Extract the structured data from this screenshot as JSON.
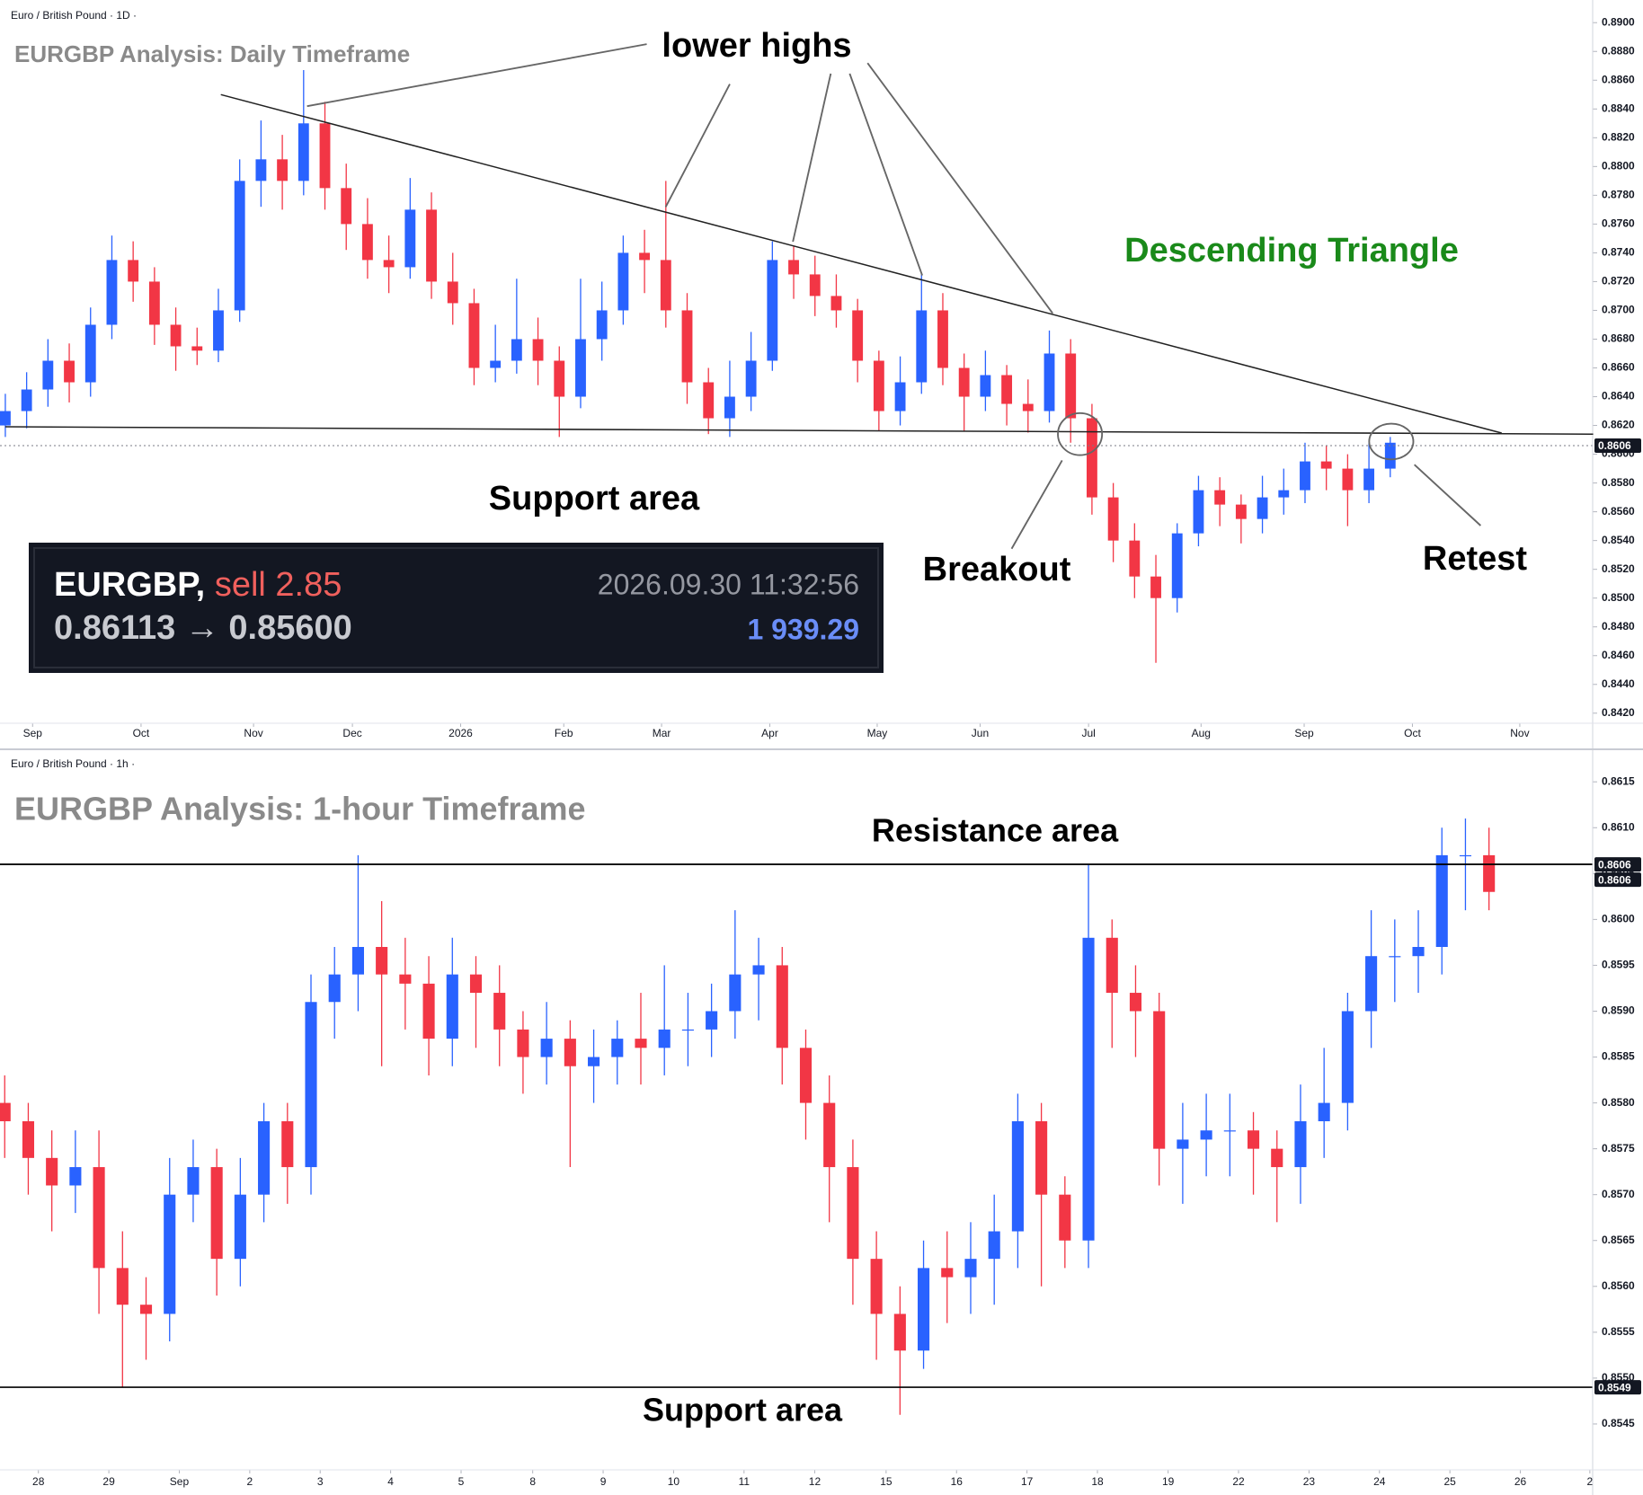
{
  "chart_data": [
    {
      "type": "candlestick",
      "header": "Euro / British Pound · 1D ·",
      "title": "EURGBP Analysis: Daily Timeframe",
      "annotations": [
        "lower highs",
        "Descending Triangle",
        "Support area",
        "Breakout",
        "Retest"
      ],
      "up_color": "#2962ff",
      "down_color": "#f23645",
      "line_style": "dotted",
      "xlim": [
        -0.25,
        74.5
      ],
      "xticks": [
        {
          "value": 1.28,
          "label": "Sep"
        },
        {
          "value": 6.37,
          "label": "Oct"
        },
        {
          "value": 11.65,
          "label": "Nov"
        },
        {
          "value": 16.29,
          "label": "Dec"
        },
        {
          "value": 21.37,
          "label": "2026"
        },
        {
          "value": 26.21,
          "label": "Feb"
        },
        {
          "value": 30.8,
          "label": "Mar"
        },
        {
          "value": 35.88,
          "label": "Apr"
        },
        {
          "value": 40.92,
          "label": "May"
        },
        {
          "value": 45.75,
          "label": "Jun"
        },
        {
          "value": 50.84,
          "label": "Jul"
        },
        {
          "value": 56.12,
          "label": "Aug"
        },
        {
          "value": 60.96,
          "label": "Sep"
        },
        {
          "value": 66.04,
          "label": "Oct"
        },
        {
          "value": 71.08,
          "label": "Nov"
        }
      ],
      "ylim": [
        0.8413,
        0.8912
      ],
      "yticks": [
        {
          "value": 0.842,
          "label": "0.8420"
        },
        {
          "value": 0.844,
          "label": "0.8440"
        },
        {
          "value": 0.846,
          "label": "0.8460"
        },
        {
          "value": 0.848,
          "label": "0.8480"
        },
        {
          "value": 0.85,
          "label": "0.8500"
        },
        {
          "value": 0.852,
          "label": "0.8520"
        },
        {
          "value": 0.854,
          "label": "0.8540"
        },
        {
          "value": 0.856,
          "label": "0.8560"
        },
        {
          "value": 0.858,
          "label": "0.8580"
        },
        {
          "value": 0.86,
          "label": "0.8600"
        },
        {
          "value": 0.862,
          "label": "0.8620"
        },
        {
          "value": 0.864,
          "label": "0.8640"
        },
        {
          "value": 0.866,
          "label": "0.8660"
        },
        {
          "value": 0.868,
          "label": "0.8680"
        },
        {
          "value": 0.87,
          "label": "0.8700"
        },
        {
          "value": 0.872,
          "label": "0.8720"
        },
        {
          "value": 0.874,
          "label": "0.8740"
        },
        {
          "value": 0.876,
          "label": "0.8760"
        },
        {
          "value": 0.878,
          "label": "0.8780"
        },
        {
          "value": 0.88,
          "label": "0.8800"
        },
        {
          "value": 0.882,
          "label": "0.8820"
        },
        {
          "value": 0.884,
          "label": "0.8840"
        },
        {
          "value": 0.886,
          "label": "0.8860"
        },
        {
          "value": 0.888,
          "label": "0.8880"
        },
        {
          "value": 0.89,
          "label": "0.8900"
        }
      ],
      "price_labels": [
        {
          "value": 0.8606,
          "label": "0.8606"
        }
      ],
      "open": [
        0.862,
        0.863,
        0.8645,
        0.8665,
        0.865,
        0.869,
        0.8735,
        0.872,
        0.869,
        0.8675,
        0.8672,
        0.87,
        0.879,
        0.8805,
        0.879,
        0.883,
        0.8785,
        0.876,
        0.8735,
        0.873,
        0.877,
        0.872,
        0.8705,
        0.866,
        0.8665,
        0.868,
        0.8665,
        0.864,
        0.868,
        0.87,
        0.874,
        0.8735,
        0.87,
        0.865,
        0.8625,
        0.864,
        0.8665,
        0.8735,
        0.8725,
        0.871,
        0.87,
        0.8665,
        0.863,
        0.865,
        0.87,
        0.866,
        0.864,
        0.8655,
        0.8635,
        0.863,
        0.867,
        0.8625,
        0.857,
        0.854,
        0.8515,
        0.85,
        0.8545,
        0.8575,
        0.8565,
        0.8555,
        0.857,
        0.8575,
        0.8595,
        0.859,
        0.8575,
        0.859
      ],
      "high": [
        0.8642,
        0.8657,
        0.868,
        0.8677,
        0.8702,
        0.8752,
        0.8748,
        0.873,
        0.8702,
        0.8688,
        0.8715,
        0.8805,
        0.8832,
        0.8822,
        0.8867,
        0.8845,
        0.8802,
        0.8778,
        0.8752,
        0.8792,
        0.8782,
        0.874,
        0.8715,
        0.869,
        0.8722,
        0.8695,
        0.8675,
        0.8722,
        0.872,
        0.8752,
        0.8756,
        0.879,
        0.8712,
        0.866,
        0.8665,
        0.8685,
        0.8748,
        0.8745,
        0.8738,
        0.8725,
        0.8708,
        0.8672,
        0.8668,
        0.8725,
        0.8712,
        0.867,
        0.8672,
        0.8662,
        0.8652,
        0.8686,
        0.868,
        0.8635,
        0.858,
        0.8552,
        0.853,
        0.8552,
        0.8585,
        0.8584,
        0.8572,
        0.8585,
        0.859,
        0.8608,
        0.8606,
        0.86,
        0.8608,
        0.8612
      ],
      "low": [
        0.8612,
        0.8618,
        0.8633,
        0.8636,
        0.864,
        0.868,
        0.8706,
        0.8676,
        0.8658,
        0.8662,
        0.8664,
        0.8692,
        0.8772,
        0.877,
        0.878,
        0.877,
        0.8742,
        0.8722,
        0.8712,
        0.8722,
        0.8708,
        0.869,
        0.8648,
        0.865,
        0.8656,
        0.8648,
        0.8612,
        0.8632,
        0.8665,
        0.869,
        0.8712,
        0.8688,
        0.8635,
        0.8614,
        0.8612,
        0.863,
        0.8658,
        0.8708,
        0.8696,
        0.8688,
        0.865,
        0.8616,
        0.862,
        0.8642,
        0.8648,
        0.8616,
        0.863,
        0.862,
        0.8615,
        0.8622,
        0.8608,
        0.8558,
        0.8525,
        0.85,
        0.8455,
        0.849,
        0.8536,
        0.855,
        0.8538,
        0.8545,
        0.8558,
        0.8566,
        0.8575,
        0.855,
        0.8566,
        0.8584
      ],
      "close": [
        0.863,
        0.8645,
        0.8665,
        0.865,
        0.869,
        0.8735,
        0.872,
        0.869,
        0.8675,
        0.8672,
        0.87,
        0.879,
        0.8805,
        0.879,
        0.883,
        0.8785,
        0.876,
        0.8735,
        0.873,
        0.877,
        0.872,
        0.8705,
        0.866,
        0.8665,
        0.868,
        0.8665,
        0.864,
        0.868,
        0.87,
        0.874,
        0.8735,
        0.87,
        0.865,
        0.8625,
        0.864,
        0.8665,
        0.8735,
        0.8725,
        0.871,
        0.87,
        0.8665,
        0.863,
        0.865,
        0.87,
        0.866,
        0.864,
        0.8655,
        0.8635,
        0.863,
        0.867,
        0.8625,
        0.857,
        0.854,
        0.8515,
        0.85,
        0.8545,
        0.8575,
        0.8565,
        0.8555,
        0.857,
        0.8575,
        0.8595,
        0.859,
        0.8575,
        0.859,
        0.8608
      ]
    },
    {
      "type": "candlestick",
      "header": "Euro / British Pound · 1h ·",
      "title": "EURGBP Analysis: 1-hour Timeframe",
      "annotations": [
        "Resistance area",
        "Support area"
      ],
      "up_color": "#2962ff",
      "down_color": "#f23645",
      "line_style": "solid",
      "xlim": [
        -0.2,
        67.4
      ],
      "xticks": [
        {
          "value": 1.43,
          "label": "28"
        },
        {
          "value": 4.42,
          "label": "29"
        },
        {
          "value": 7.41,
          "label": "Sep"
        },
        {
          "value": 10.4,
          "label": "2"
        },
        {
          "value": 13.39,
          "label": "3"
        },
        {
          "value": 16.38,
          "label": "4"
        },
        {
          "value": 19.37,
          "label": "5"
        },
        {
          "value": 22.41,
          "label": "8"
        },
        {
          "value": 25.4,
          "label": "9"
        },
        {
          "value": 28.39,
          "label": "10"
        },
        {
          "value": 31.38,
          "label": "11"
        },
        {
          "value": 34.38,
          "label": "12"
        },
        {
          "value": 37.41,
          "label": "15"
        },
        {
          "value": 40.4,
          "label": "16"
        },
        {
          "value": 43.39,
          "label": "17"
        },
        {
          "value": 46.38,
          "label": "18"
        },
        {
          "value": 49.38,
          "label": "19"
        },
        {
          "value": 52.37,
          "label": "22"
        },
        {
          "value": 55.36,
          "label": "23"
        },
        {
          "value": 58.35,
          "label": "24"
        },
        {
          "value": 61.34,
          "label": "25"
        },
        {
          "value": 64.33,
          "label": "26"
        },
        {
          "value": 67.28,
          "label": "2"
        }
      ],
      "ylim": [
        0.854,
        0.8616
      ],
      "yticks": [
        0.8545,
        {
          "value": 0.855,
          "label": "0.8550"
        },
        0.8555,
        {
          "value": 0.856,
          "label": "0.8560"
        },
        0.8565,
        {
          "value": 0.857,
          "label": "0.8570"
        },
        0.8575,
        {
          "value": 0.858,
          "label": "0.8580"
        },
        0.8585,
        {
          "value": 0.859,
          "label": "0.8590"
        },
        0.8595,
        {
          "value": 0.86,
          "label": "0.8600"
        },
        0.8605,
        {
          "value": 0.861,
          "label": "0.8610"
        },
        0.8615
      ],
      "price_labels": [
        {
          "value": 0.8606,
          "label": "0.8606"
        },
        {
          "value": 0.8606,
          "label": "0.8606"
        },
        0.8549
      ],
      "open": [
        0.858,
        0.8578,
        0.8574,
        0.8571,
        0.8573,
        0.8562,
        0.8558,
        0.8557,
        0.857,
        0.8573,
        0.8563,
        0.857,
        0.8578,
        0.8573,
        0.8591,
        0.8594,
        0.8597,
        0.8594,
        0.8593,
        0.8587,
        0.8594,
        0.8592,
        0.8588,
        0.8585,
        0.8587,
        0.8584,
        0.8585,
        0.8587,
        0.8586,
        0.8588,
        0.8588,
        0.859,
        0.8594,
        0.8595,
        0.8586,
        0.858,
        0.8573,
        0.8563,
        0.8557,
        0.8553,
        0.8562,
        0.8561,
        0.8563,
        0.8566,
        0.8578,
        0.857,
        0.8565,
        0.8598,
        0.8592,
        0.859,
        0.8575,
        0.8576,
        0.8577,
        0.8577,
        0.8575,
        0.8573,
        0.8578,
        0.858,
        0.859,
        0.8596,
        0.8596,
        0.8597,
        0.8607,
        0.8607
      ],
      "high": [
        0.8583,
        0.858,
        0.8577,
        0.8577,
        0.8577,
        0.8566,
        0.8561,
        0.8574,
        0.8576,
        0.8575,
        0.8574,
        0.858,
        0.858,
        0.8594,
        0.8597,
        0.8607,
        0.8602,
        0.8598,
        0.8596,
        0.8598,
        0.8596,
        0.8595,
        0.859,
        0.8591,
        0.8589,
        0.8588,
        0.8589,
        0.8592,
        0.8595,
        0.8592,
        0.8593,
        0.8601,
        0.8598,
        0.8597,
        0.8588,
        0.8583,
        0.8576,
        0.8566,
        0.856,
        0.8565,
        0.8566,
        0.8567,
        0.857,
        0.8581,
        0.858,
        0.8572,
        0.8606,
        0.86,
        0.8595,
        0.8592,
        0.858,
        0.8581,
        0.8581,
        0.8579,
        0.8577,
        0.8582,
        0.8586,
        0.8592,
        0.8601,
        0.86,
        0.8601,
        0.861,
        0.8611,
        0.861
      ],
      "low": [
        0.8574,
        0.857,
        0.8566,
        0.8568,
        0.8557,
        0.8549,
        0.8552,
        0.8554,
        0.8567,
        0.8559,
        0.856,
        0.8567,
        0.8569,
        0.857,
        0.8587,
        0.859,
        0.8584,
        0.8588,
        0.8583,
        0.8584,
        0.8586,
        0.8584,
        0.8581,
        0.8582,
        0.8573,
        0.858,
        0.8582,
        0.8582,
        0.8583,
        0.8584,
        0.8585,
        0.8587,
        0.8589,
        0.8582,
        0.8576,
        0.8567,
        0.8558,
        0.8552,
        0.8546,
        0.8551,
        0.8556,
        0.8557,
        0.8558,
        0.8562,
        0.856,
        0.8562,
        0.8562,
        0.8586,
        0.8585,
        0.8571,
        0.8569,
        0.8572,
        0.8572,
        0.857,
        0.8567,
        0.8569,
        0.8574,
        0.8577,
        0.8586,
        0.8591,
        0.8592,
        0.8594,
        0.8601,
        0.8601
      ],
      "close": [
        0.8578,
        0.8574,
        0.8571,
        0.8573,
        0.8562,
        0.8558,
        0.8557,
        0.857,
        0.8573,
        0.8563,
        0.857,
        0.8578,
        0.8573,
        0.8591,
        0.8594,
        0.8597,
        0.8594,
        0.8593,
        0.8587,
        0.8594,
        0.8592,
        0.8588,
        0.8585,
        0.8587,
        0.8584,
        0.8585,
        0.8587,
        0.8586,
        0.8588,
        0.8588,
        0.859,
        0.8594,
        0.8595,
        0.8586,
        0.858,
        0.8573,
        0.8563,
        0.8557,
        0.8553,
        0.8562,
        0.8561,
        0.8563,
        0.8566,
        0.8578,
        0.857,
        0.8565,
        0.8598,
        0.8592,
        0.859,
        0.8575,
        0.8576,
        0.8577,
        0.8577,
        0.8575,
        0.8573,
        0.8578,
        0.858,
        0.859,
        0.8596,
        0.8596,
        0.8597,
        0.8607,
        0.8607,
        0.8603
      ]
    }
  ],
  "order_box": {
    "symbol": "EURGBP,",
    "side": "sell 2.85",
    "time": "2026.09.30 11:32:56",
    "entry": "0.86113",
    "arrow": "→",
    "target": "0.85600",
    "amount": "1 939.29"
  }
}
